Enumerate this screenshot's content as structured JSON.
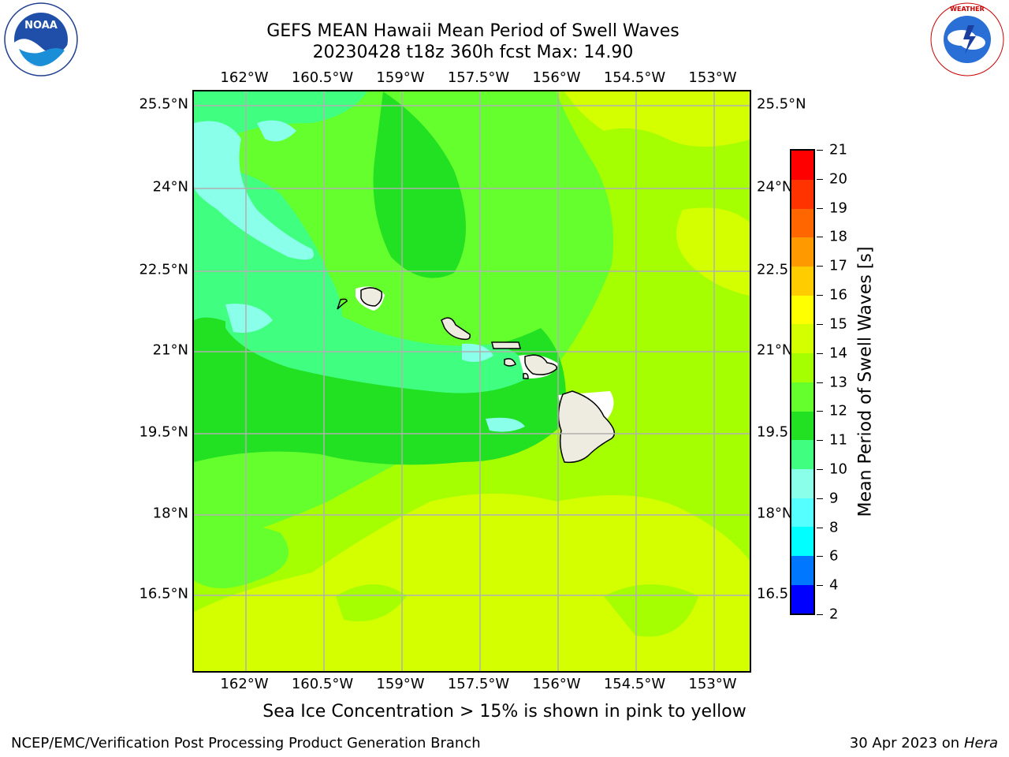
{
  "header": {
    "title_line1": "GEFS MEAN Hawaii Mean Period of Swell Waves",
    "title_line2": "20230428 t18z 360h fcst   Max: 14.90"
  },
  "logos": {
    "left": "NOAA",
    "left_ring_text": "NATIONAL OCEANIC AND ATMOSPHERIC ADMINISTRATION · U.S. DEPARTMENT OF COMMERCE",
    "right_ring_text": "NATIONAL WEATHER SERVICE"
  },
  "map": {
    "lon_labels": [
      "162°W",
      "160.5°W",
      "159°W",
      "157.5°W",
      "156°W",
      "154.5°W",
      "153°W"
    ],
    "lat_labels": [
      "25.5°N",
      "24°N",
      "22.5°N",
      "21°N",
      "19.5°N",
      "18°N",
      "16.5°N"
    ],
    "right_lat_labels": [
      "25.5°N",
      "24°N",
      "22.5",
      "21°N",
      "19.5",
      "18°N",
      "16.5"
    ],
    "gridline_color": "#b0b0b0",
    "land_color": "#eeece0",
    "base_color": "#66ff2e"
  },
  "colorbar": {
    "title": "Mean Period of Swell Waves [s]",
    "levels": [
      "2",
      "4",
      "6",
      "8",
      "9",
      "10",
      "11",
      "12",
      "13",
      "14",
      "15",
      "16",
      "17",
      "18",
      "19",
      "20",
      "21"
    ],
    "colors": [
      "#0000ff",
      "#0077ff",
      "#00ffff",
      "#55ffff",
      "#8affea",
      "#40ff80",
      "#22e022",
      "#66ff2e",
      "#a6ff00",
      "#d4ff00",
      "#ffff00",
      "#ffcc00",
      "#ff9900",
      "#ff6600",
      "#ff3300",
      "#ff0000"
    ]
  },
  "note": "Sea Ice Concentration > 15% is shown in pink to yellow",
  "footer": {
    "left": "NCEP/EMC/Verification Post Processing Product Generation Branch",
    "right_prefix": "30 Apr 2023 on ",
    "right_machine": "Hera"
  }
}
